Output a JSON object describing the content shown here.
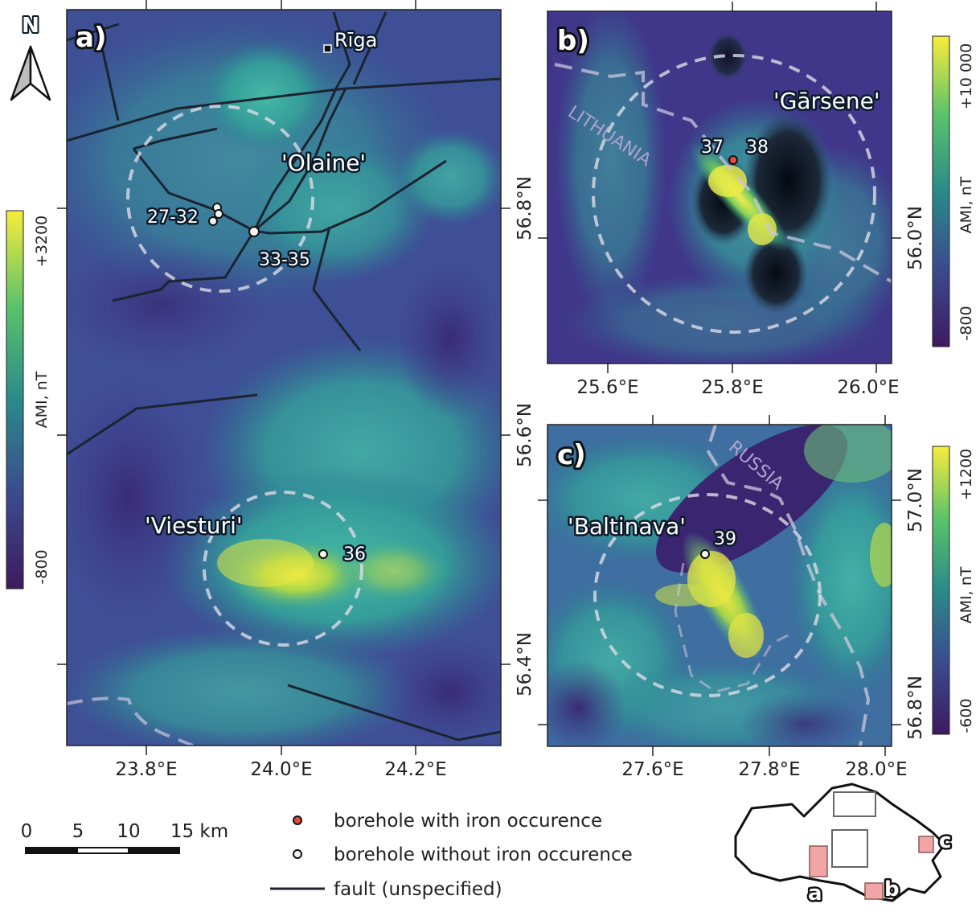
{
  "north_arrow": {
    "label": "N"
  },
  "panel_a": {
    "letter": "a)",
    "city": "Rīga",
    "areas": {
      "olaine": "'Olaine'",
      "viesturi": "'Viesturi'"
    },
    "boreholes": {
      "b2732": "27-32",
      "b3335": "33-35",
      "b36": "36"
    },
    "x_ticks": [
      "23.8°E",
      "24.0°E",
      "24.2°E"
    ],
    "y_ticks": [
      "56.8°N",
      "56.6°N",
      "56.4°N"
    ],
    "colorbar": {
      "label": "AMI, nT",
      "max": "+3200",
      "min": "-800"
    }
  },
  "panel_b": {
    "letter": "b)",
    "area": "'Gārsene'",
    "country": "LITHUANIA",
    "boreholes": {
      "b37": "37",
      "b38": "38"
    },
    "x_ticks": [
      "25.6°E",
      "25.8°E",
      "26.0°E"
    ],
    "y_ticks": [
      "56.0°N"
    ],
    "colorbar": {
      "label": "AMI, nT",
      "max": "+10 000",
      "min": "-800"
    }
  },
  "panel_c": {
    "letter": "c)",
    "area": "'Baltinava'",
    "country": "RUSSIA",
    "boreholes": {
      "b39": "39"
    },
    "x_ticks": [
      "27.6°E",
      "27.8°E",
      "28.0°E"
    ],
    "y_ticks": [
      "57.0°N",
      "56.8°N"
    ],
    "colorbar": {
      "label": "AMI, nT",
      "max": "+1200",
      "min": "-600"
    }
  },
  "scale_bar": {
    "labels": [
      "0",
      "5",
      "10",
      "15 km"
    ]
  },
  "legend": {
    "iron": "borehole with iron occurence",
    "no_iron": "borehole without iron occurence",
    "fault": "fault (unspecified)"
  },
  "inset": {
    "labels": [
      "a",
      "b",
      "c"
    ]
  },
  "colors": {
    "viridis_low": "#3b1f63",
    "viridis_mid": "#2a8a8a",
    "viridis_high": "#f5ea3a",
    "iron_marker": "#e84a3c",
    "fault": "#1b2430",
    "boundary": "#d8d8e2",
    "inset_box": "#f2a5a5"
  }
}
